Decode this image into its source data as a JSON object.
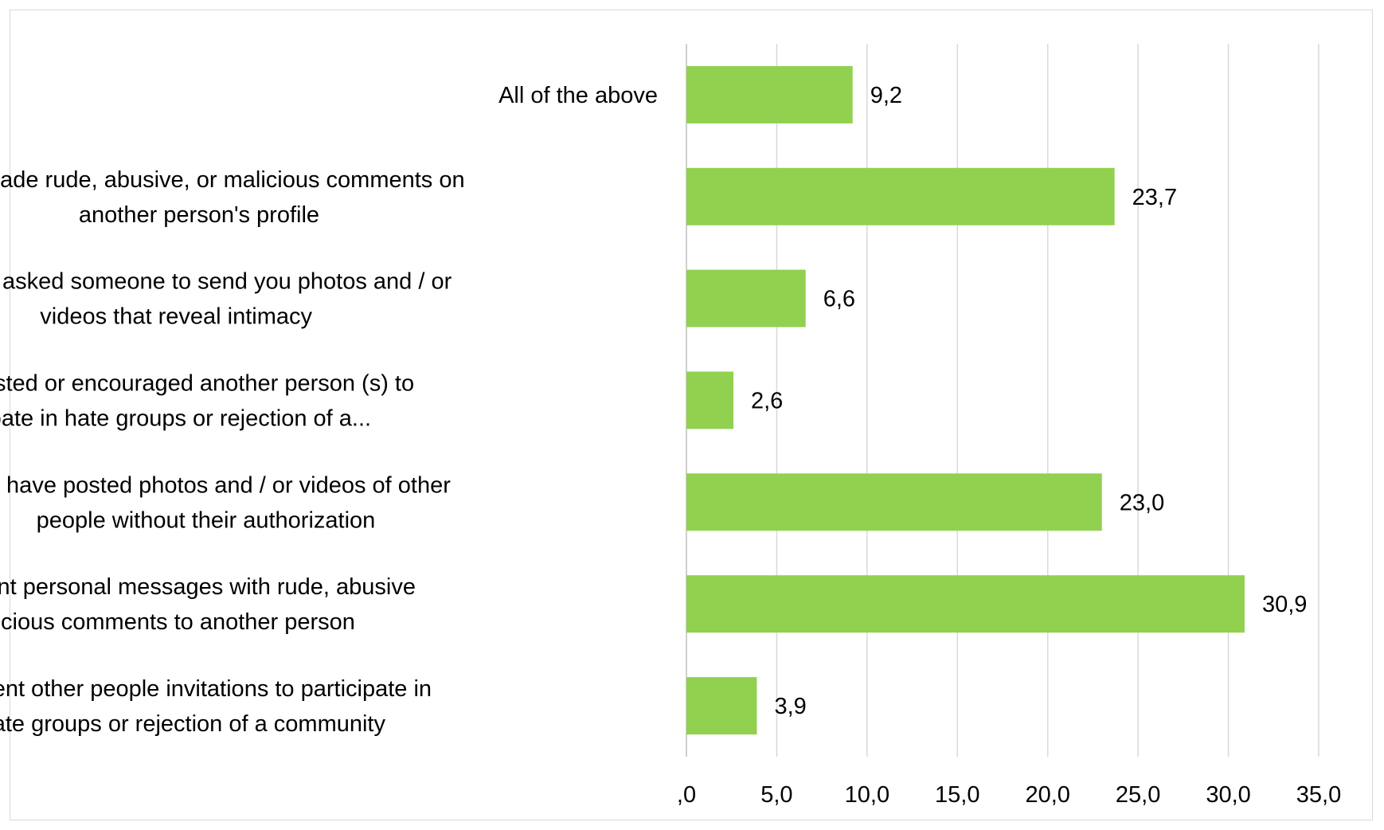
{
  "chart_data": {
    "type": "bar",
    "orientation": "horizontal",
    "title": "",
    "xlabel": "",
    "ylabel": "",
    "xlim": [
      0,
      35
    ],
    "x_ticks": [
      0,
      5,
      10,
      15,
      20,
      25,
      30,
      35
    ],
    "x_tick_labels": [
      ",0",
      "5,0",
      "10,0",
      "15,0",
      "20,0",
      "25,0",
      "30,0",
      "35,0"
    ],
    "grid": "vertical",
    "legend": "none",
    "bar_color": "#92d050",
    "categories": [
      "All of the above",
      "Has made rude, abusive, or malicious comments on another person's profile",
      "You have asked someone to send you photos and / or videos that reveal intimacy",
      "Has suggested or encouraged another person (s) to participate in hate groups or rejection of a...",
      "You have posted photos and / or videos of other people without their authorization",
      "You have sent personal messages with rude, abusive or malicious comments to another person",
      "Has sent other people invitations to participate in hate groups or rejection of a community"
    ],
    "category_lines": [
      [
        "All of the above"
      ],
      [
        "Has made rude, abusive, or malicious comments on",
        "another person's profile"
      ],
      [
        "You have asked someone to send you photos and / or",
        "videos that reveal intimacy"
      ],
      [
        "Has suggested or encouraged another person (s) to",
        "participate in hate groups or rejection of a..."
      ],
      [
        "You have posted photos and / or videos of other",
        "people without their authorization"
      ],
      [
        "You have sent personal messages with rude, abusive",
        "or malicious comments to another person"
      ],
      [
        "Has sent other people invitations to participate in",
        "hate groups or rejection of a community"
      ]
    ],
    "values": [
      9.2,
      23.7,
      6.6,
      2.6,
      23.0,
      30.9,
      3.9
    ],
    "value_labels": [
      "9,2",
      "23,7",
      "6,6",
      "2,6",
      "23,0",
      "30,9",
      "3,9"
    ]
  }
}
